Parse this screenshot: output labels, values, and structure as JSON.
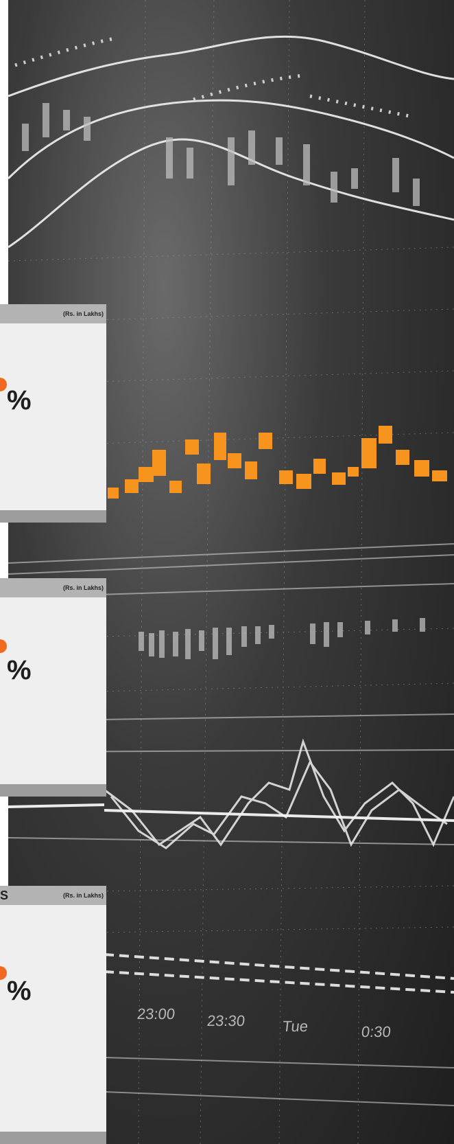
{
  "cards": [
    {
      "title_tail": "",
      "unit": "(Rs. in Lakhs)",
      "pct": "%",
      "accent": "#f26a21"
    },
    {
      "title_tail": "",
      "unit": "(Rs. in Lakhs)",
      "pct": "%",
      "accent": "#f26a21"
    },
    {
      "title_tail": "S",
      "unit": "(Rs. in Lakhs)",
      "pct": "%",
      "accent": "#f26a21"
    }
  ],
  "background": {
    "time_labels": [
      "23:00",
      "23:30",
      "Tue",
      "0:30"
    ],
    "accent_candle": "#f7941d"
  }
}
